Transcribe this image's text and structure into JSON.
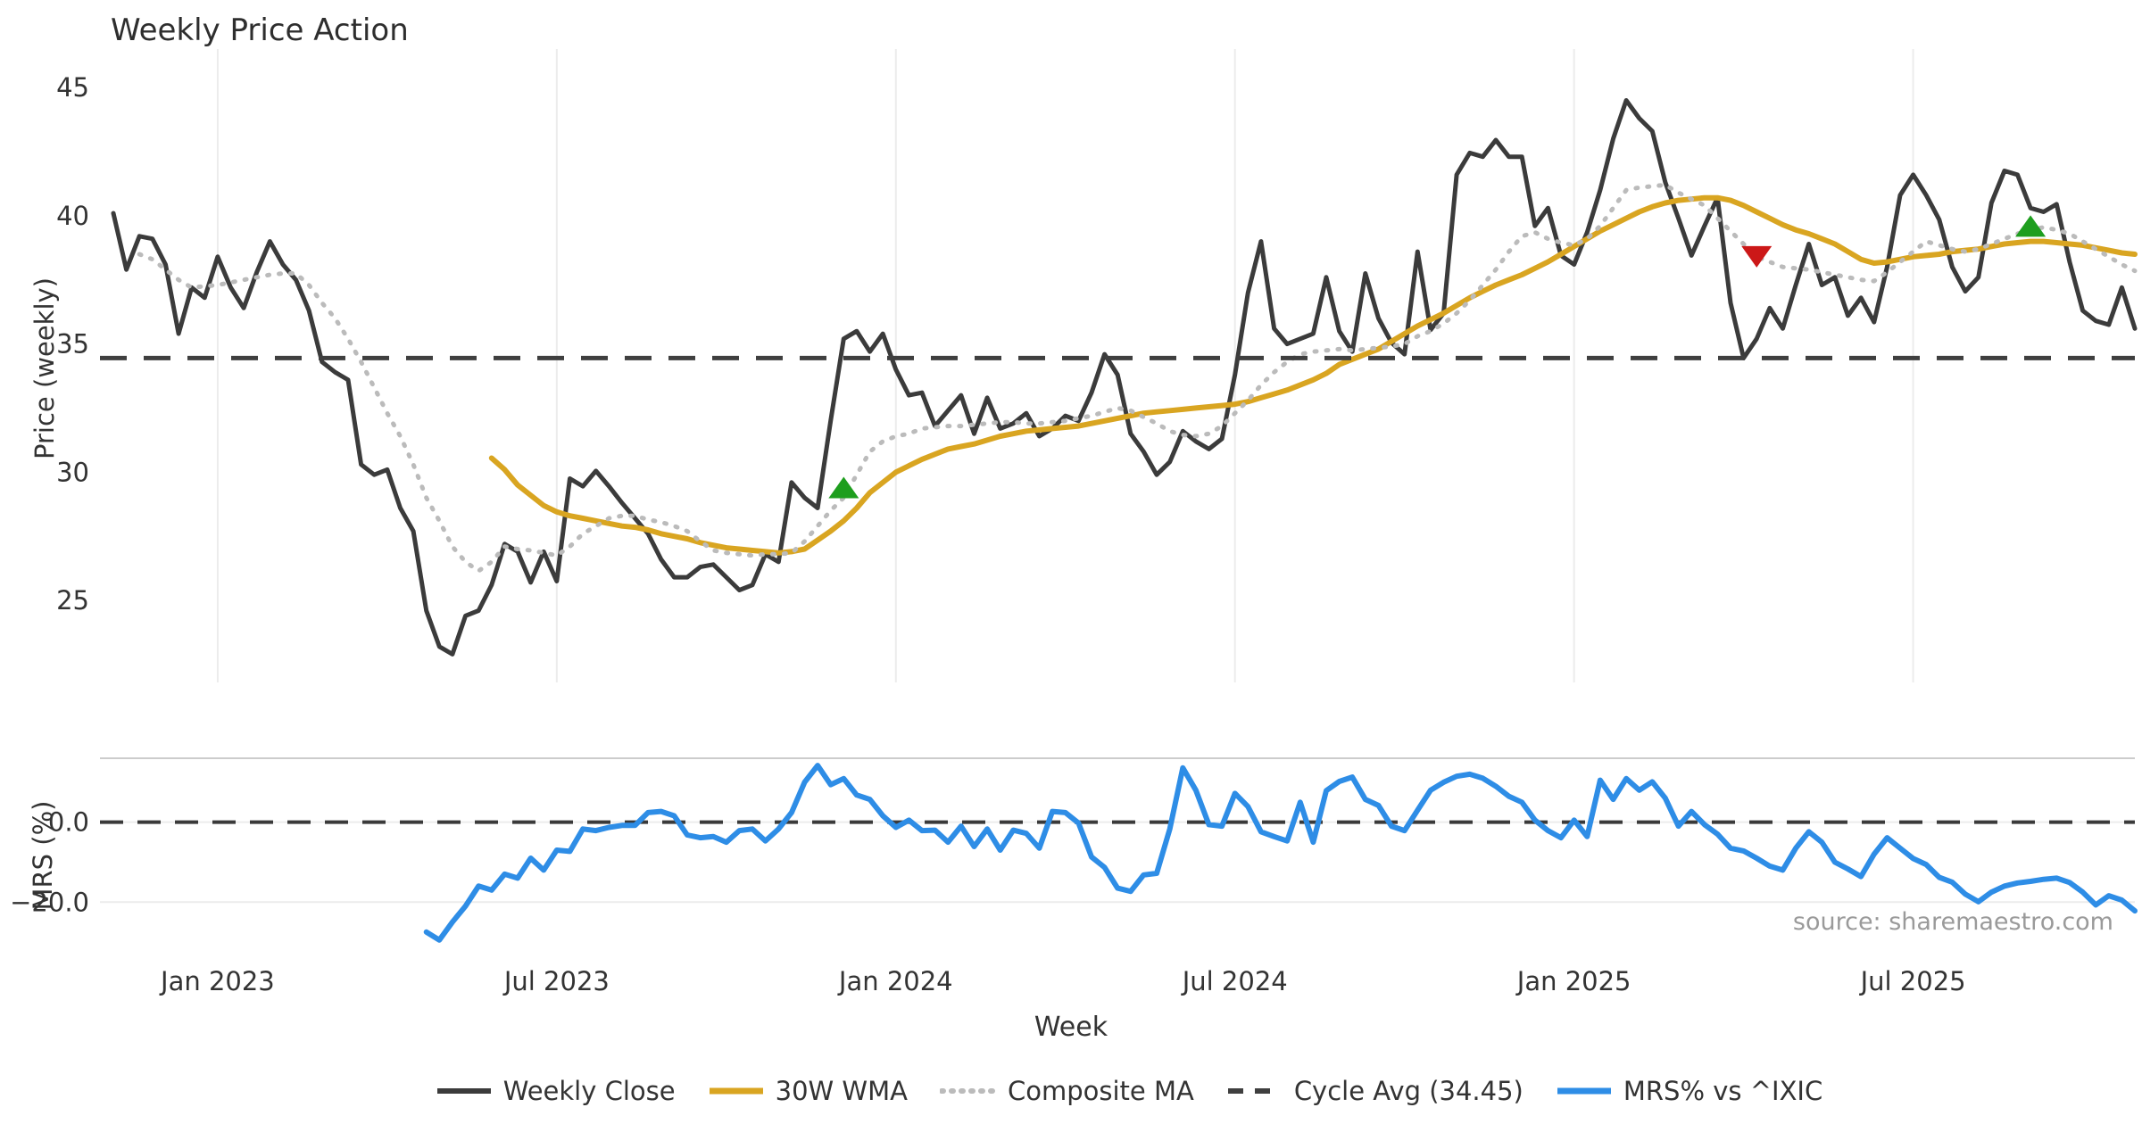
{
  "source_note": "source: sharemaestro.com",
  "colors": {
    "weekly_close": "#3b3b3b",
    "wma30": "#d9a521",
    "composite": "#bbbbbb",
    "cycle_avg": "#3f3f3f",
    "mrs": "#2e8de6",
    "marker_buy": "#1e9e1e",
    "marker_sell": "#cc1818",
    "gridline": "#ececec",
    "spine": "#cccccc",
    "tick_text": "#333333"
  },
  "chart_data": {
    "type": "line",
    "title": "Weekly Price Action",
    "xlabel": "Week",
    "x_start_date": "2022-11-07",
    "x_interval": "weekly",
    "x_ticks": [
      {
        "week": 8,
        "label": "Jan 2023"
      },
      {
        "week": 34,
        "label": "Jul 2023"
      },
      {
        "week": 60,
        "label": "Jan 2024"
      },
      {
        "week": 86,
        "label": "Jul 2024"
      },
      {
        "week": 112,
        "label": "Jan 2025"
      },
      {
        "week": 138,
        "label": "Jul 2025"
      }
    ],
    "panels": [
      {
        "id": "price",
        "ylabel": "Price (weekly)",
        "ylim": [
          21.8,
          46.5
        ],
        "yticks": [
          {
            "v": 25,
            "label": "25"
          },
          {
            "v": 30,
            "label": "30"
          },
          {
            "v": 35,
            "label": "35"
          },
          {
            "v": 40,
            "label": "40"
          },
          {
            "v": 45,
            "label": "45"
          }
        ],
        "grid_vertical": true
      },
      {
        "id": "mrs",
        "ylabel": "MRS (%)",
        "ylim": [
          -32,
          16
        ],
        "yticks": [
          {
            "v": 0,
            "label": "0.0"
          },
          {
            "v": -20,
            "label": "−20.0"
          }
        ],
        "grid_horizontal": true,
        "zero_line_dashed": true
      }
    ],
    "series": [
      {
        "name": "Weekly Close",
        "panel": "price",
        "style": "solid",
        "color_key": "weekly_close",
        "width": 5,
        "values": [
          40.1,
          37.9,
          39.2,
          39.1,
          38.1,
          35.4,
          37.2,
          36.8,
          38.4,
          37.2,
          36.4,
          37.8,
          39.0,
          38.1,
          37.5,
          36.3,
          34.3,
          33.9,
          33.6,
          30.3,
          29.9,
          30.1,
          28.6,
          27.7,
          24.6,
          23.2,
          22.9,
          24.4,
          24.6,
          25.6,
          27.2,
          26.9,
          25.7,
          26.9,
          25.75,
          29.75,
          29.45,
          30.05,
          29.45,
          28.8,
          28.2,
          27.6,
          26.6,
          25.9,
          25.9,
          26.3,
          26.4,
          25.9,
          25.4,
          25.6,
          26.8,
          26.5,
          29.6,
          29.0,
          28.6,
          32.0,
          35.2,
          35.5,
          34.7,
          35.4,
          34.0,
          33.0,
          33.1,
          31.8,
          32.4,
          33.0,
          31.5,
          32.9,
          31.7,
          31.9,
          32.3,
          31.4,
          31.7,
          32.2,
          32.0,
          33.1,
          34.6,
          33.8,
          31.5,
          30.8,
          29.9,
          30.4,
          31.6,
          31.2,
          30.9,
          31.3,
          33.8,
          37.0,
          39.0,
          35.6,
          35.0,
          35.2,
          35.4,
          37.6,
          35.5,
          34.7,
          37.75,
          36.0,
          35.05,
          34.6,
          38.6,
          35.55,
          36.2,
          41.6,
          42.45,
          42.3,
          42.95,
          42.3,
          42.3,
          39.6,
          40.3,
          38.45,
          38.1,
          39.35,
          41.0,
          43.0,
          44.5,
          43.8,
          43.3,
          41.3,
          39.9,
          38.45,
          39.6,
          40.7,
          36.6,
          34.45,
          35.2,
          36.4,
          35.6,
          37.3,
          38.9,
          37.3,
          37.6,
          36.1,
          36.8,
          35.85,
          38.0,
          40.8,
          41.6,
          40.8,
          39.85,
          38.0,
          37.05,
          37.6,
          40.5,
          41.75,
          41.6,
          40.3,
          40.15,
          40.45,
          38.2,
          36.3,
          35.9,
          35.75,
          37.2,
          35.6
        ]
      },
      {
        "name": "30W WMA",
        "panel": "price",
        "style": "solid",
        "color_key": "wma30",
        "width": 6,
        "values": [
          null,
          null,
          null,
          null,
          null,
          null,
          null,
          null,
          null,
          null,
          null,
          null,
          null,
          null,
          null,
          null,
          null,
          null,
          null,
          null,
          null,
          null,
          null,
          null,
          null,
          null,
          null,
          null,
          null,
          30.55,
          30.1,
          29.5,
          29.1,
          28.7,
          28.45,
          28.3,
          28.2,
          28.1,
          28.0,
          27.9,
          27.85,
          27.75,
          27.6,
          27.5,
          27.4,
          27.25,
          27.15,
          27.05,
          27.0,
          26.95,
          26.9,
          26.85,
          26.9,
          27.0,
          27.35,
          27.7,
          28.1,
          28.6,
          29.2,
          29.6,
          30.0,
          30.25,
          30.5,
          30.7,
          30.9,
          31.0,
          31.1,
          31.25,
          31.4,
          31.5,
          31.6,
          31.65,
          31.7,
          31.75,
          31.8,
          31.9,
          32.0,
          32.1,
          32.2,
          32.3,
          32.35,
          32.4,
          32.45,
          32.5,
          32.55,
          32.6,
          32.65,
          32.75,
          32.9,
          33.05,
          33.2,
          33.4,
          33.6,
          33.85,
          34.2,
          34.4,
          34.6,
          34.8,
          35.1,
          35.4,
          35.7,
          35.95,
          36.2,
          36.5,
          36.8,
          37.05,
          37.3,
          37.5,
          37.7,
          37.95,
          38.2,
          38.5,
          38.8,
          39.1,
          39.4,
          39.65,
          39.9,
          40.15,
          40.35,
          40.5,
          40.6,
          40.65,
          40.7,
          40.7,
          40.6,
          40.4,
          40.15,
          39.9,
          39.65,
          39.45,
          39.3,
          39.1,
          38.9,
          38.6,
          38.3,
          38.15,
          38.2,
          38.3,
          38.4,
          38.45,
          38.5,
          38.6,
          38.65,
          38.7,
          38.8,
          38.9,
          38.95,
          39.0,
          39.0,
          38.95,
          38.9,
          38.85,
          38.75,
          38.65,
          38.55,
          38.5
        ]
      },
      {
        "name": "Composite MA",
        "panel": "price",
        "style": "dotted",
        "color_key": "composite",
        "width": 5,
        "values": [
          null,
          null,
          38.5,
          38.3,
          37.9,
          37.5,
          37.2,
          37.25,
          37.3,
          37.4,
          37.5,
          37.6,
          37.7,
          37.75,
          37.75,
          37.3,
          36.6,
          36.0,
          35.2,
          34.3,
          33.3,
          32.3,
          31.4,
          30.3,
          29.0,
          28.1,
          27.1,
          26.5,
          26.15,
          26.5,
          27.1,
          27.0,
          26.95,
          26.85,
          26.75,
          27.1,
          27.6,
          27.9,
          28.2,
          28.3,
          28.3,
          28.15,
          28.05,
          27.9,
          27.7,
          27.3,
          26.95,
          26.85,
          26.8,
          26.75,
          26.8,
          26.8,
          26.85,
          27.3,
          27.9,
          28.5,
          29.0,
          29.9,
          30.8,
          31.2,
          31.4,
          31.5,
          31.7,
          31.75,
          31.8,
          31.8,
          31.85,
          31.9,
          31.95,
          31.95,
          31.9,
          31.9,
          31.95,
          32.0,
          32.1,
          32.2,
          32.35,
          32.5,
          32.4,
          32.15,
          31.9,
          31.6,
          31.45,
          31.4,
          31.5,
          31.8,
          32.3,
          32.8,
          33.4,
          33.9,
          34.3,
          34.6,
          34.7,
          34.75,
          34.8,
          34.75,
          34.8,
          34.85,
          34.9,
          35.0,
          35.3,
          35.5,
          35.8,
          36.2,
          36.7,
          37.3,
          37.9,
          38.6,
          39.2,
          39.35,
          39.1,
          38.95,
          38.85,
          39.1,
          39.6,
          40.3,
          41.0,
          41.1,
          41.15,
          41.2,
          40.9,
          40.65,
          40.4,
          39.9,
          39.4,
          38.9,
          38.4,
          38.2,
          38.0,
          37.95,
          37.9,
          37.8,
          37.7,
          37.6,
          37.5,
          37.45,
          37.8,
          38.2,
          38.6,
          39.0,
          38.85,
          38.7,
          38.6,
          38.7,
          38.9,
          39.1,
          39.3,
          39.45,
          39.55,
          39.45,
          39.3,
          39.0,
          38.7,
          38.4,
          38.1,
          37.85
        ]
      },
      {
        "name": "Cycle Avg (34.45)",
        "panel": "price",
        "style": "dashed",
        "color_key": "cycle_avg",
        "width": 5,
        "hline": 34.45
      },
      {
        "name": "MRS% vs ^IXIC",
        "panel": "mrs",
        "style": "solid",
        "color_key": "mrs",
        "width": 6,
        "values": [
          null,
          null,
          null,
          null,
          null,
          null,
          null,
          null,
          null,
          null,
          null,
          null,
          null,
          null,
          null,
          null,
          null,
          null,
          null,
          null,
          null,
          null,
          null,
          null,
          -27.5,
          -29.5,
          -25.0,
          -21.0,
          -16.0,
          -17.0,
          -13.0,
          -14.0,
          -9.0,
          -12.0,
          -7.0,
          -7.3,
          -1.7,
          -2.1,
          -1.3,
          -0.8,
          -0.8,
          2.4,
          2.7,
          1.6,
          -3.2,
          -3.9,
          -3.6,
          -5.0,
          -2.1,
          -1.7,
          -4.7,
          -1.7,
          2.4,
          10.0,
          14.2,
          9.4,
          10.9,
          6.8,
          5.7,
          1.6,
          -1.3,
          0.5,
          -2.1,
          -2.0,
          -5.0,
          -1.0,
          -6.1,
          -1.7,
          -7.0,
          -2.0,
          -2.8,
          -6.5,
          2.7,
          2.4,
          -0.2,
          -8.7,
          -11.3,
          -16.5,
          -17.3,
          -13.2,
          -12.8,
          -1.7,
          13.6,
          8.0,
          -0.6,
          -1.0,
          7.2,
          3.9,
          -2.4,
          -3.6,
          -4.7,
          5.0,
          -5.0,
          7.9,
          10.2,
          11.3,
          5.7,
          4.2,
          -1.0,
          -2.1,
          3.0,
          8.0,
          10.0,
          11.5,
          12.0,
          11.0,
          9.0,
          6.5,
          5.0,
          0.5,
          -2.1,
          -3.9,
          0.5,
          -3.6,
          10.5,
          5.7,
          10.9,
          8.0,
          10.1,
          6.0,
          -1.0,
          2.7,
          -0.6,
          -3.0,
          -6.5,
          -7.2,
          -9.0,
          -11.0,
          -12.0,
          -6.5,
          -2.4,
          -5.0,
          -10.0,
          -11.7,
          -13.6,
          -8.0,
          -3.9,
          -6.5,
          -9.1,
          -10.6,
          -13.8,
          -15.0,
          -18.0,
          -19.9,
          -17.5,
          -16.0,
          -15.2,
          -14.8,
          -14.3,
          -14.0,
          -15.1,
          -17.5,
          -20.7,
          -18.4,
          -19.5,
          -22.2
        ]
      }
    ],
    "markers": [
      {
        "shape": "triangle-up",
        "color_key": "marker_buy",
        "week": 56,
        "price": 29.4
      },
      {
        "shape": "triangle-down",
        "color_key": "marker_sell",
        "week": 126,
        "price": 38.4
      },
      {
        "shape": "triangle-up",
        "color_key": "marker_buy",
        "week": 147,
        "price": 39.6
      }
    ]
  }
}
